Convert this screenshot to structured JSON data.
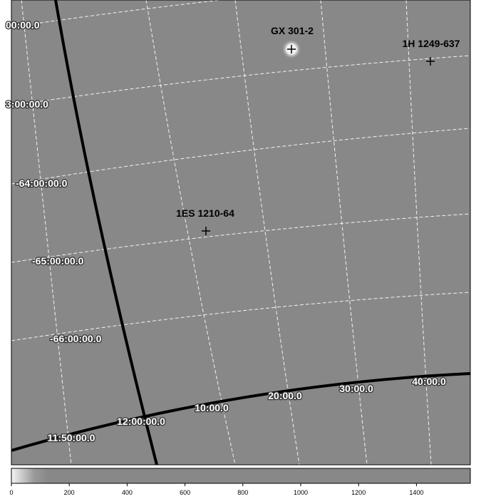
{
  "sources": [
    {
      "label": "GX 301-2"
    },
    {
      "label": "1H 1249-637"
    },
    {
      "label": "1ES 1210-64"
    }
  ],
  "dec_labels": [
    "00:00.0",
    "3:00:00.0",
    "-64:00:00.0",
    "-65:00:00.0",
    "-66:00:00.0"
  ],
  "ra_labels": [
    "11:50:00.0",
    "12:00:00.0",
    "10:00.0",
    "20:00.0",
    "30:00.0",
    "40:00.0"
  ],
  "colorbar": {
    "ticks": [
      "0",
      "200",
      "400",
      "600",
      "800",
      "1000",
      "1200",
      "1400"
    ]
  }
}
